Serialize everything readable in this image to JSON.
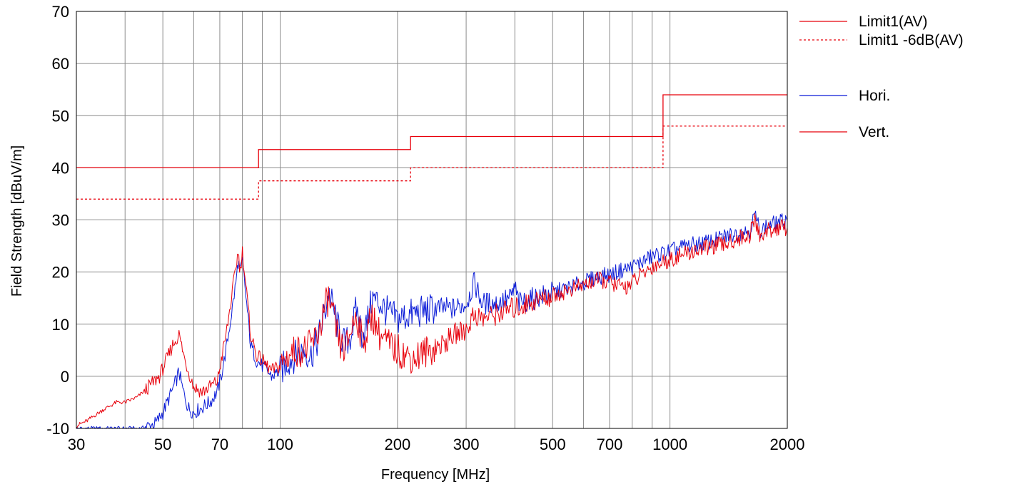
{
  "chart_data": {
    "type": "line",
    "title": "",
    "xlabel": "Frequency [MHz]",
    "ylabel": "Field Strength [dBuV/m]",
    "x_scale": "log",
    "xlim": [
      30,
      2000
    ],
    "ylim": [
      -10,
      70
    ],
    "x_ticks": [
      30,
      50,
      70,
      100,
      200,
      300,
      500,
      700,
      1000,
      2000
    ],
    "x_tick_labels": [
      "30",
      "50",
      "70",
      "100",
      "200",
      "300",
      "500",
      "700",
      "1000",
      "2000"
    ],
    "y_ticks": [
      -10,
      0,
      10,
      20,
      30,
      40,
      50,
      60,
      70
    ],
    "y_tick_labels": [
      "-10",
      "0",
      "10",
      "20",
      "30",
      "40",
      "50",
      "60",
      "70"
    ],
    "grid": true,
    "legend_position": "right",
    "limits": [
      {
        "name": "Limit1(AV)",
        "style": "solid",
        "color": "#e8000b",
        "steps": [
          [
            30,
            88,
            40
          ],
          [
            88,
            216,
            43.5
          ],
          [
            216,
            960,
            46
          ],
          [
            960,
            2000,
            54
          ]
        ]
      },
      {
        "name": "Limit1 -6dB(AV)",
        "style": "dotted",
        "color": "#e8000b",
        "steps": [
          [
            30,
            88,
            34
          ],
          [
            88,
            216,
            37.5
          ],
          [
            216,
            960,
            40
          ],
          [
            960,
            2000,
            48
          ]
        ]
      }
    ],
    "series": [
      {
        "name": "Hori.",
        "color": "#0a1bd8",
        "points": [
          [
            30,
            -10
          ],
          [
            32,
            -10
          ],
          [
            35,
            -10
          ],
          [
            40,
            -10
          ],
          [
            44,
            -10
          ],
          [
            46,
            -9.5
          ],
          [
            48,
            -9
          ],
          [
            50,
            -7
          ],
          [
            52,
            -4
          ],
          [
            54,
            -1
          ],
          [
            55,
            1
          ],
          [
            56,
            -2
          ],
          [
            58,
            -6
          ],
          [
            60,
            -7
          ],
          [
            63,
            -6
          ],
          [
            66,
            -5
          ],
          [
            69,
            -3
          ],
          [
            71,
            1
          ],
          [
            73,
            6
          ],
          [
            75,
            12
          ],
          [
            77,
            18
          ],
          [
            78,
            22
          ],
          [
            79,
            20
          ],
          [
            80,
            22
          ],
          [
            82,
            14
          ],
          [
            84,
            6
          ],
          [
            87,
            3
          ],
          [
            90,
            2
          ],
          [
            95,
            0
          ],
          [
            100,
            1
          ],
          [
            105,
            3
          ],
          [
            110,
            4
          ],
          [
            115,
            5
          ],
          [
            120,
            4
          ],
          [
            125,
            7
          ],
          [
            130,
            12
          ],
          [
            133,
            16
          ],
          [
            137,
            13
          ],
          [
            142,
            8
          ],
          [
            147,
            6
          ],
          [
            152,
            8
          ],
          [
            157,
            13
          ],
          [
            162,
            8
          ],
          [
            167,
            10
          ],
          [
            172,
            15
          ],
          [
            180,
            14
          ],
          [
            190,
            12
          ],
          [
            200,
            11
          ],
          [
            220,
            12
          ],
          [
            250,
            13
          ],
          [
            280,
            13
          ],
          [
            300,
            14
          ],
          [
            315,
            18
          ],
          [
            330,
            14
          ],
          [
            360,
            14
          ],
          [
            390,
            15
          ],
          [
            400,
            17
          ],
          [
            410,
            14
          ],
          [
            450,
            15
          ],
          [
            500,
            16
          ],
          [
            550,
            17
          ],
          [
            600,
            18
          ],
          [
            650,
            19
          ],
          [
            700,
            19.5
          ],
          [
            800,
            21
          ],
          [
            900,
            23
          ],
          [
            1000,
            24
          ],
          [
            1100,
            25
          ],
          [
            1200,
            25.5
          ],
          [
            1300,
            26
          ],
          [
            1400,
            27
          ],
          [
            1500,
            27.5
          ],
          [
            1600,
            28
          ],
          [
            1650,
            31
          ],
          [
            1700,
            28
          ],
          [
            1800,
            29
          ],
          [
            1900,
            29.5
          ],
          [
            2000,
            30
          ]
        ]
      },
      {
        "name": "Vert.",
        "color": "#e8000b",
        "points": [
          [
            30,
            -9.5
          ],
          [
            32,
            -8.5
          ],
          [
            35,
            -6.5
          ],
          [
            38,
            -5
          ],
          [
            40,
            -5
          ],
          [
            43,
            -4
          ],
          [
            46,
            -2
          ],
          [
            49,
            0
          ],
          [
            51,
            3
          ],
          [
            53,
            6
          ],
          [
            55,
            8
          ],
          [
            57,
            3
          ],
          [
            60,
            -2
          ],
          [
            63,
            -3
          ],
          [
            66,
            -2
          ],
          [
            69,
            -1
          ],
          [
            71,
            4
          ],
          [
            73,
            9
          ],
          [
            75,
            15
          ],
          [
            77,
            21
          ],
          [
            78,
            24
          ],
          [
            79,
            20
          ],
          [
            80,
            24
          ],
          [
            82,
            16
          ],
          [
            84,
            8
          ],
          [
            87,
            4
          ],
          [
            90,
            3
          ],
          [
            95,
            1
          ],
          [
            100,
            2
          ],
          [
            105,
            4
          ],
          [
            110,
            5
          ],
          [
            115,
            5
          ],
          [
            120,
            6
          ],
          [
            125,
            8
          ],
          [
            130,
            13
          ],
          [
            133,
            15
          ],
          [
            137,
            11
          ],
          [
            142,
            6
          ],
          [
            147,
            5
          ],
          [
            152,
            9
          ],
          [
            157,
            12
          ],
          [
            162,
            7
          ],
          [
            167,
            8
          ],
          [
            172,
            12
          ],
          [
            180,
            8
          ],
          [
            190,
            6
          ],
          [
            200,
            5
          ],
          [
            210,
            4
          ],
          [
            220,
            3.5
          ],
          [
            240,
            5
          ],
          [
            260,
            6
          ],
          [
            280,
            8
          ],
          [
            300,
            9
          ],
          [
            315,
            12
          ],
          [
            330,
            11
          ],
          [
            360,
            12
          ],
          [
            390,
            13
          ],
          [
            400,
            13
          ],
          [
            450,
            14.5
          ],
          [
            500,
            15.5
          ],
          [
            550,
            16.5
          ],
          [
            600,
            17.5
          ],
          [
            650,
            18.5
          ],
          [
            700,
            18
          ],
          [
            760,
            17
          ],
          [
            800,
            18
          ],
          [
            900,
            21
          ],
          [
            1000,
            22.5
          ],
          [
            1100,
            23.5
          ],
          [
            1200,
            24.5
          ],
          [
            1300,
            25
          ],
          [
            1400,
            25.5
          ],
          [
            1500,
            26.5
          ],
          [
            1600,
            27
          ],
          [
            1650,
            30
          ],
          [
            1700,
            27
          ],
          [
            1800,
            28
          ],
          [
            1900,
            28.5
          ],
          [
            2000,
            28.5
          ]
        ]
      }
    ]
  }
}
